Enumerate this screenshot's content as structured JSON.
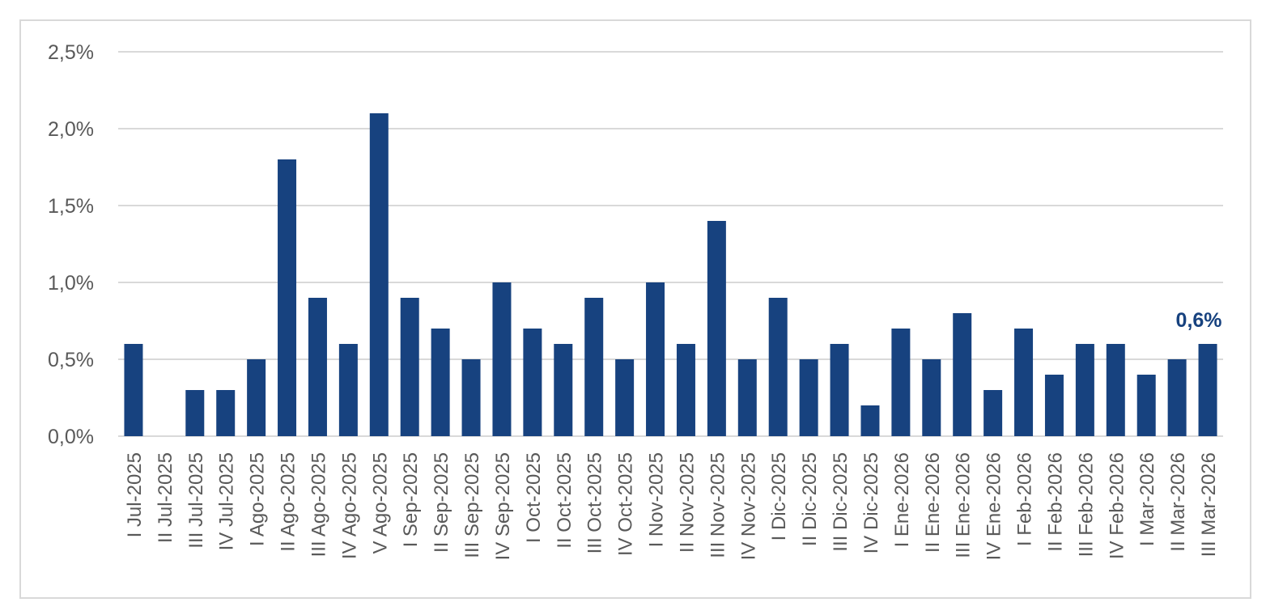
{
  "chart_data": {
    "type": "bar",
    "categories": [
      "I Jul-2025",
      "II Jul-2025",
      "III Jul-2025",
      "IV Jul-2025",
      "I Ago-2025",
      "II Ago-2025",
      "III Ago-2025",
      "IV Ago-2025",
      "V Ago-2025",
      "I Sep-2025",
      "II Sep-2025",
      "III Sep-2025",
      "IV Sep-2025",
      "I Oct-2025",
      "II Oct-2025",
      "III Oct-2025",
      "IV Oct-2025",
      "I Nov-2025",
      "II Nov-2025",
      "III Nov-2025",
      "IV Nov-2025",
      "I Dic-2025",
      "II Dic-2025",
      "III Dic-2025",
      "IV Dic-2025",
      "I Ene-2026",
      "II Ene-2026",
      "III Ene-2026",
      "IV Ene-2026",
      "I Feb-2026",
      "II Feb-2026",
      "III Feb-2026",
      "IV Feb-2026",
      "I Mar-2026",
      "II Mar-2026",
      "III Mar-2026"
    ],
    "values": [
      0.6,
      0.0,
      0.3,
      0.3,
      0.5,
      1.8,
      0.9,
      0.6,
      2.1,
      0.9,
      0.7,
      0.5,
      1.0,
      0.7,
      0.6,
      0.9,
      0.5,
      1.0,
      0.6,
      1.4,
      0.5,
      0.9,
      0.5,
      0.6,
      0.2,
      0.7,
      0.5,
      0.8,
      0.3,
      0.7,
      0.4,
      0.6,
      0.6,
      0.4,
      0.5,
      0.6
    ],
    "unit": "%",
    "ylim": [
      0,
      2.5
    ],
    "yticks": [
      0,
      0.5,
      1.0,
      1.5,
      2.0,
      2.5
    ],
    "ytick_labels": [
      "0,0%",
      "0,5%",
      "1,0%",
      "1,5%",
      "2,0%",
      "2,5%"
    ],
    "grid": true,
    "legend": false,
    "bar_color": "#17427F",
    "annotations": [
      {
        "category": "III Mar-2026",
        "text": "0,6%",
        "color": "#17427F"
      }
    ],
    "title": "",
    "xlabel": "",
    "ylabel": ""
  }
}
